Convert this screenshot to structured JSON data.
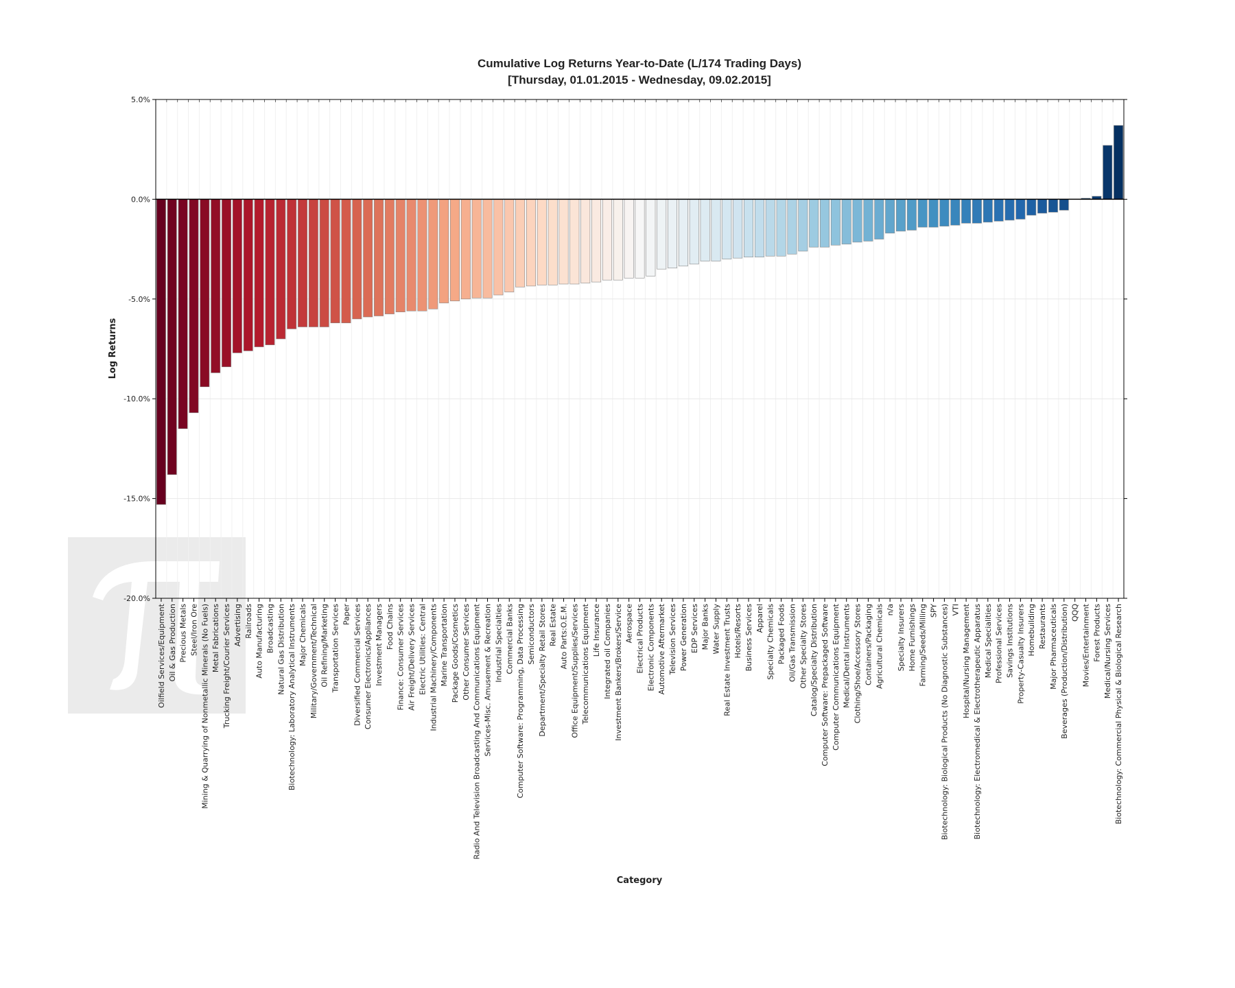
{
  "chart_data": {
    "type": "bar",
    "title": [
      "Cumulative Log Returns Year-to-Date (L/174 Trading Days)",
      "[Thursday, 01.01.2015 - Wednesday, 09.02.2015]"
    ],
    "xlabel": "Category",
    "ylabel": "Log Returns",
    "categories": [
      "Oilfield Services/Equipment",
      "Oil & Gas Production",
      "Precious Metals",
      "Steel/Iron Ore",
      "Mining & Quarrying of Nonmetallic Minerals (No Fuels)",
      "Metal Fabrications",
      "Trucking Freight/Courier Services",
      "Advertising",
      "Railroads",
      "Auto Manufacturing",
      "Broadcasting",
      "Natural Gas Distribution",
      "Biotechnology: Laboratory Analytical Instruments",
      "Major Chemicals",
      "Military/Government/Technical",
      "Oil Refining/Marketing",
      "Transportation Services",
      "Paper",
      "Diversified Commercial Services",
      "Consumer Electronics/Appliances",
      "Investment Managers",
      "Food Chains",
      "Finance: Consumer Services",
      "Air Freight/Delivery Services",
      "Electric Utilities: Central",
      "Industrial Machinery/Components",
      "Marine Transportation",
      "Package Goods/Cosmetics",
      "Other Consumer Services",
      "Radio And Television Broadcasting And Communications Equipment",
      "Services-Misc. Amusement & Recreation",
      "Industrial Specialties",
      "Commercial Banks",
      "Computer Software: Programming, Data Processing",
      "Semiconductors",
      "Department/Specialty Retail Stores",
      "Real Estate",
      "Auto Parts:O.E.M.",
      "Office Equipment/Supplies/Services",
      "Telecommunications Equipment",
      "Life Insurance",
      "Integrated oil Companies",
      "Investment Bankers/Brokers/Service",
      "Aerospace",
      "Electrical Products",
      "Electronic Components",
      "Automotive Aftermarket",
      "Television Services",
      "Power Generation",
      "EDP Services",
      "Major Banks",
      "Water Supply",
      "Real Estate Investment Trusts",
      "Hotels/Resorts",
      "Business Services",
      "Apparel",
      "Specialty Chemicals",
      "Packaged Foods",
      "Oil/Gas Transmission",
      "Other Specialty Stores",
      "Catalog/Specialty Distribution",
      "Computer Software: Prepackaged Software",
      "Computer Communications Equipment",
      "Medical/Dental Instruments",
      "Clothing/Shoe/Accessory Stores",
      "Containers/Packaging",
      "Agricultural Chemicals",
      "n/a",
      "Specialty Insurers",
      "Home Furnishings",
      "Farming/Seeds/Milling",
      "SPY",
      "Biotechnology: Biological Products (No Diagnostic Substances)",
      "VTI",
      "Hospital/Nursing Management",
      "Biotechnology: Electromedical & Electrotherapeutic Apparatus",
      "Medical Specialities",
      "Professional Services",
      "Savings Institutions",
      "Property-Casualty Insurers",
      "Homebuilding",
      "Restaurants",
      "Major Pharmaceuticals",
      "Beverages (Production/Distribution)",
      "QQQ",
      "Movies/Entertainment",
      "Forest Products",
      "Medical/Nursing Services",
      "Biotechnology: Commercial Physical & Biological Research"
    ],
    "values": [
      -15.3,
      -13.8,
      -11.5,
      -10.7,
      -9.4,
      -8.7,
      -8.4,
      -7.7,
      -7.6,
      -7.4,
      -7.3,
      -7.0,
      -6.5,
      -6.4,
      -6.4,
      -6.4,
      -6.2,
      -6.2,
      -6.0,
      -5.9,
      -5.85,
      -5.75,
      -5.65,
      -5.6,
      -5.6,
      -5.5,
      -5.2,
      -5.1,
      -5.0,
      -4.95,
      -4.95,
      -4.8,
      -4.65,
      -4.4,
      -4.35,
      -4.3,
      -4.3,
      -4.25,
      -4.25,
      -4.2,
      -4.15,
      -4.05,
      -4.05,
      -3.95,
      -3.95,
      -3.85,
      -3.5,
      -3.45,
      -3.35,
      -3.25,
      -3.1,
      -3.1,
      -3.0,
      -2.95,
      -2.9,
      -2.9,
      -2.85,
      -2.85,
      -2.75,
      -2.6,
      -2.4,
      -2.4,
      -2.3,
      -2.25,
      -2.15,
      -2.1,
      -2.0,
      -1.7,
      -1.6,
      -1.55,
      -1.4,
      -1.4,
      -1.35,
      -1.3,
      -1.2,
      -1.2,
      -1.15,
      -1.1,
      -1.05,
      -1.0,
      -0.8,
      -0.7,
      -0.65,
      -0.55,
      0.0,
      0.05,
      0.15,
      2.7,
      3.7
    ],
    "colormap": [
      "#67001f",
      "#b2182b",
      "#d6604d",
      "#f4a582",
      "#fddbc7",
      "#f7f7f7",
      "#d1e5f0",
      "#92c5de",
      "#4393c3",
      "#2166ac",
      "#053061"
    ],
    "ylim": [
      -20,
      5
    ],
    "yticks": [
      {
        "value": -20,
        "label": "-20.0%"
      },
      {
        "value": -15,
        "label": "-15.0%"
      },
      {
        "value": -10,
        "label": "-10.0%"
      },
      {
        "value": -5,
        "label": "-5.0%"
      },
      {
        "value": 0,
        "label": "0.0%"
      },
      {
        "value": 5,
        "label": "5.0%"
      }
    ],
    "grid": true
  }
}
